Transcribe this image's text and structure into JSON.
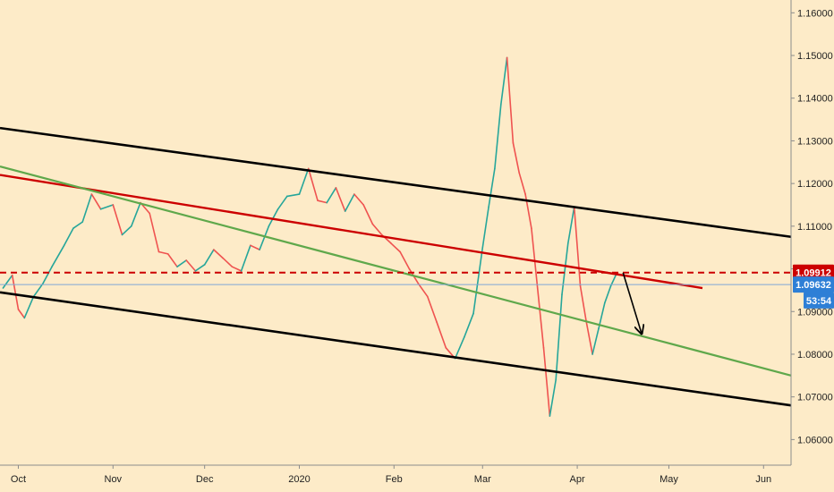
{
  "chart_data": {
    "type": "line",
    "instrument": "",
    "x_ticks": [
      "Oct",
      "Nov",
      "Dec",
      "2020",
      "Feb",
      "Mar",
      "Apr",
      "May",
      "Jun"
    ],
    "y_ticks": [
      "1.16000",
      "1.15000",
      "1.14000",
      "1.13000",
      "1.12000",
      "1.11000",
      "1.10000",
      "1.09000",
      "1.08000",
      "1.07000",
      "1.06000"
    ],
    "y_range": [
      1.054,
      1.163
    ],
    "x_range": [
      "2019-09-25",
      "2020-06-10"
    ],
    "price_series": {
      "name": "",
      "color": "#26a69a",
      "points": [
        [
          "2019-09-26",
          1.0955
        ],
        [
          "2019-09-29",
          1.0985
        ],
        [
          "2019-10-01",
          1.0905
        ],
        [
          "2019-10-03",
          1.0885
        ],
        [
          "2019-10-06",
          1.0935
        ],
        [
          "2019-10-09",
          1.0965
        ],
        [
          "2019-10-12",
          1.1005
        ],
        [
          "2019-10-16",
          1.1055
        ],
        [
          "2019-10-19",
          1.1095
        ],
        [
          "2019-10-22",
          1.111
        ],
        [
          "2019-10-25",
          1.1175
        ],
        [
          "2019-10-28",
          1.114
        ],
        [
          "2019-11-01",
          1.115
        ],
        [
          "2019-11-04",
          1.108
        ],
        [
          "2019-11-07",
          1.11
        ],
        [
          "2019-11-10",
          1.1155
        ],
        [
          "2019-11-13",
          1.113
        ],
        [
          "2019-11-16",
          1.104
        ],
        [
          "2019-11-19",
          1.1035
        ],
        [
          "2019-11-22",
          1.1005
        ],
        [
          "2019-11-25",
          1.102
        ],
        [
          "2019-11-28",
          1.0995
        ],
        [
          "2019-12-01",
          1.101
        ],
        [
          "2019-12-04",
          1.1045
        ],
        [
          "2019-12-07",
          1.1025
        ],
        [
          "2019-12-10",
          1.1005
        ],
        [
          "2019-12-13",
          1.0995
        ],
        [
          "2019-12-16",
          1.1055
        ],
        [
          "2019-12-19",
          1.1045
        ],
        [
          "2019-12-22",
          1.11
        ],
        [
          "2019-12-25",
          1.114
        ],
        [
          "2019-12-28",
          1.117
        ],
        [
          "2020-01-01",
          1.1175
        ],
        [
          "2020-01-04",
          1.1235
        ],
        [
          "2020-01-07",
          1.116
        ],
        [
          "2020-01-10",
          1.1155
        ],
        [
          "2020-01-13",
          1.119
        ],
        [
          "2020-01-16",
          1.1135
        ],
        [
          "2020-01-19",
          1.1175
        ],
        [
          "2020-01-22",
          1.115
        ],
        [
          "2020-01-25",
          1.1105
        ],
        [
          "2020-01-28",
          1.108
        ],
        [
          "2020-01-31",
          1.106
        ],
        [
          "2020-02-03",
          1.104
        ],
        [
          "2020-02-06",
          1.1
        ],
        [
          "2020-02-09",
          1.0965
        ],
        [
          "2020-02-12",
          1.0935
        ],
        [
          "2020-02-15",
          1.0875
        ],
        [
          "2020-02-18",
          1.0815
        ],
        [
          "2020-02-21",
          1.079
        ],
        [
          "2020-02-24",
          1.084
        ],
        [
          "2020-02-27",
          1.0895
        ],
        [
          "2020-03-01",
          1.105
        ],
        [
          "2020-03-03",
          1.1145
        ],
        [
          "2020-03-05",
          1.1235
        ],
        [
          "2020-03-07",
          1.1385
        ],
        [
          "2020-03-09",
          1.1495
        ],
        [
          "2020-03-11",
          1.1295
        ],
        [
          "2020-03-13",
          1.1225
        ],
        [
          "2020-03-15",
          1.1175
        ],
        [
          "2020-03-17",
          1.1095
        ],
        [
          "2020-03-19",
          1.0955
        ],
        [
          "2020-03-21",
          1.0815
        ],
        [
          "2020-03-23",
          1.0655
        ],
        [
          "2020-03-25",
          1.074
        ],
        [
          "2020-03-27",
          1.094
        ],
        [
          "2020-03-29",
          1.106
        ],
        [
          "2020-03-31",
          1.1145
        ],
        [
          "2020-04-02",
          1.096
        ],
        [
          "2020-04-04",
          1.0875
        ],
        [
          "2020-04-06",
          1.08
        ],
        [
          "2020-04-08",
          1.086
        ],
        [
          "2020-04-10",
          1.092
        ],
        [
          "2020-04-12",
          1.096
        ],
        [
          "2020-04-14",
          1.0991
        ]
      ]
    },
    "overlays": [
      {
        "kind": "trendline",
        "color": "#000000",
        "width": 2.6,
        "points": [
          [
            "2019-09-25",
            1.133
          ],
          [
            "2020-06-10",
            1.1075
          ]
        ]
      },
      {
        "kind": "trendline",
        "color": "#000000",
        "width": 2.6,
        "points": [
          [
            "2019-09-25",
            1.0945
          ],
          [
            "2020-06-10",
            1.068
          ]
        ]
      },
      {
        "kind": "trendline",
        "color": "#cc0000",
        "width": 2.4,
        "points": [
          [
            "2019-09-25",
            1.122
          ],
          [
            "2020-05-12",
            1.0955
          ]
        ]
      },
      {
        "kind": "trendline",
        "color": "#5fa84b",
        "width": 2.2,
        "points": [
          [
            "2019-09-25",
            1.124
          ],
          [
            "2020-06-10",
            1.075
          ]
        ]
      },
      {
        "kind": "hline",
        "color": "#cc0000",
        "style": "dashed",
        "value": 1.09912
      },
      {
        "kind": "hline",
        "color": "#7fa6d6",
        "style": "solid",
        "value": 1.09632
      },
      {
        "kind": "arrow",
        "color": "#000000",
        "points": [
          [
            "2020-04-16",
            1.0991
          ],
          [
            "2020-04-22",
            1.085
          ]
        ]
      }
    ],
    "price_labels": [
      {
        "text": "1.09912",
        "value": 1.09912,
        "bg": "#cc0000",
        "fg": "#ffffff"
      },
      {
        "text": "1.09632",
        "value": 1.09632,
        "bg": "#2e7fd6",
        "fg": "#ffffff"
      },
      {
        "text": "53:54",
        "value": 1.0926,
        "bg": "#2e7fd6",
        "fg": "#ffffff"
      }
    ],
    "grid": false,
    "legend": "none"
  }
}
